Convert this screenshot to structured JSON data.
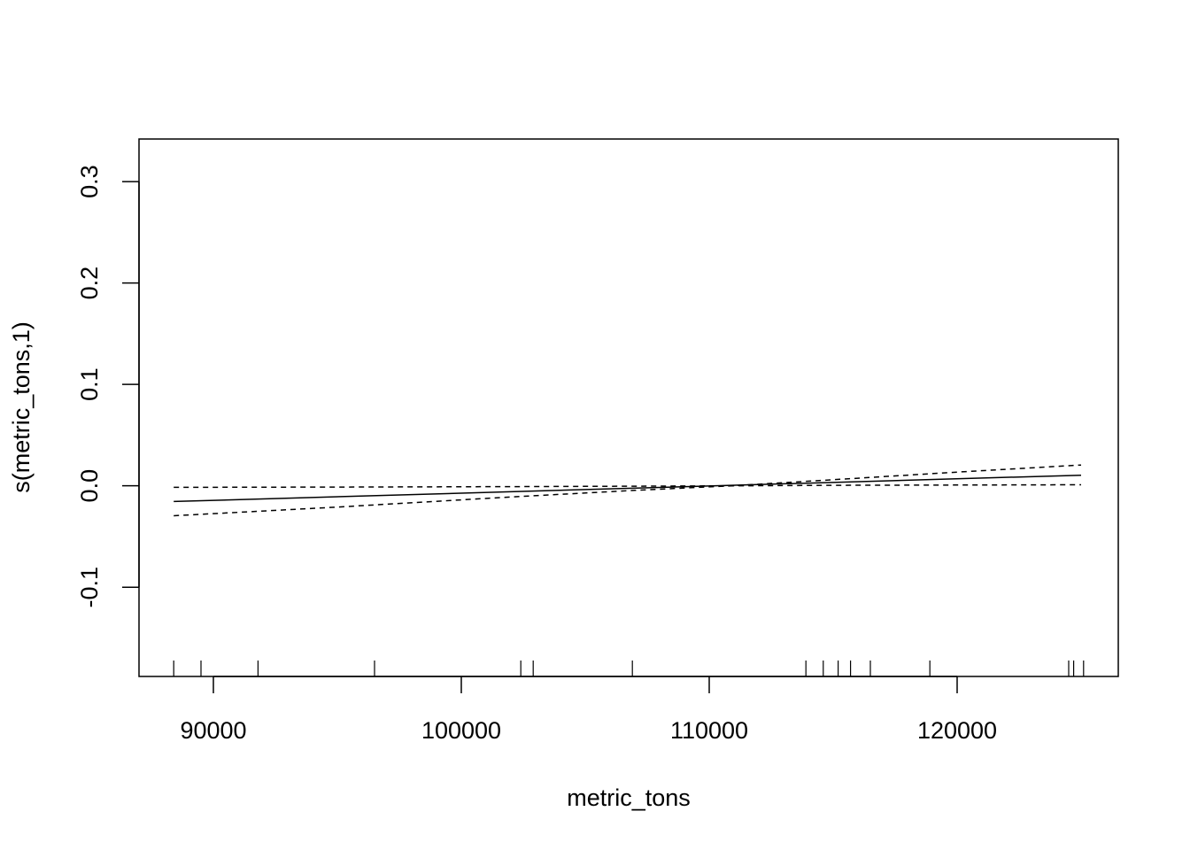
{
  "chart_data": {
    "type": "line",
    "title": "",
    "xlabel": "metric_tons",
    "ylabel": "s(metric_tons,1)",
    "xlim": [
      87000,
      126500
    ],
    "ylim": [
      -0.188,
      0.342
    ],
    "x_ticks": [
      90000,
      100000,
      110000,
      120000
    ],
    "x_tick_labels": [
      "90000",
      "100000",
      "110000",
      "120000"
    ],
    "y_ticks": [
      -0.1,
      0.0,
      0.1,
      0.2,
      0.3
    ],
    "y_tick_labels": [
      "-0.1",
      "0.0",
      "0.1",
      "0.2",
      "0.3"
    ],
    "grid": false,
    "legend": "none",
    "series": [
      {
        "style": "solid",
        "x": [
          88400,
          125000
        ],
        "y": [
          -0.0155,
          0.0105
        ]
      },
      {
        "style": "dashed",
        "x": [
          88400,
          95000,
          102000,
          107000,
          110900,
          115000,
          120000,
          125000
        ],
        "y": [
          -0.0015,
          -0.0012,
          -0.0008,
          -0.0004,
          0.0,
          0.0005,
          0.0008,
          0.001
        ]
      },
      {
        "style": "dashed",
        "x": [
          88400,
          95000,
          102000,
          107000,
          110900,
          115000,
          120000,
          125000
        ],
        "y": [
          -0.0295,
          -0.021,
          -0.011,
          -0.0045,
          0.0,
          0.006,
          0.0135,
          0.0205
        ]
      }
    ],
    "rug": [
      88400,
      89500,
      91800,
      96500,
      102400,
      102900,
      106900,
      113900,
      114600,
      115200,
      115700,
      116500,
      118900,
      124500,
      124700,
      125100
    ]
  }
}
